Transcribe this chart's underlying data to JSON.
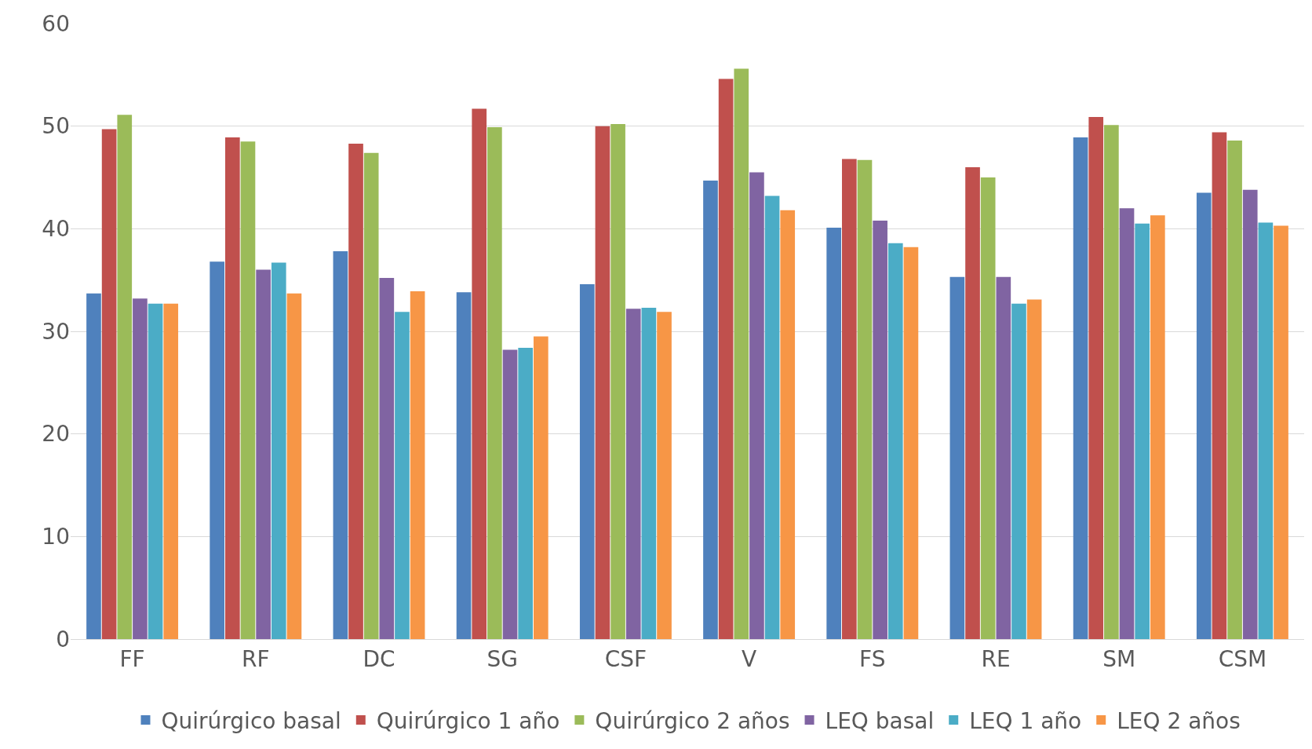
{
  "chart_data": {
    "type": "bar",
    "categories": [
      "FF",
      "RF",
      "DC",
      "SG",
      "CSF",
      "V",
      "FS",
      "RE",
      "SM",
      "CSM"
    ],
    "series": [
      {
        "name": "Quirúrgico basal",
        "color": "#4f81bd",
        "values": [
          33.7,
          36.8,
          37.8,
          33.8,
          34.6,
          44.7,
          40.1,
          35.3,
          48.9,
          43.5
        ]
      },
      {
        "name": "Quirúrgico 1 año",
        "color": "#c0504d",
        "values": [
          49.7,
          48.9,
          48.3,
          51.7,
          50.0,
          54.6,
          46.8,
          46.0,
          50.9,
          49.4
        ]
      },
      {
        "name": "Quirúrgico 2 años",
        "color": "#9bbb59",
        "values": [
          51.1,
          48.5,
          47.4,
          49.9,
          50.2,
          55.6,
          46.7,
          45.0,
          50.1,
          48.6
        ]
      },
      {
        "name": "LEQ basal",
        "color": "#8064a2",
        "values": [
          33.2,
          36.0,
          35.2,
          28.2,
          32.2,
          45.5,
          40.8,
          35.3,
          42.0,
          43.8
        ]
      },
      {
        "name": "LEQ 1 año",
        "color": "#4bacc6",
        "values": [
          32.7,
          36.7,
          31.9,
          28.4,
          32.3,
          43.2,
          38.6,
          32.7,
          40.5,
          40.6
        ]
      },
      {
        "name": "LEQ 2 años",
        "color": "#f79646",
        "values": [
          32.7,
          33.7,
          33.9,
          29.5,
          31.9,
          41.8,
          38.2,
          33.1,
          41.3,
          40.3
        ]
      }
    ],
    "ylim": [
      0,
      60
    ],
    "yticks": [
      0,
      10,
      20,
      30,
      40,
      50,
      60
    ],
    "grid": "y",
    "legend": "bottom"
  }
}
